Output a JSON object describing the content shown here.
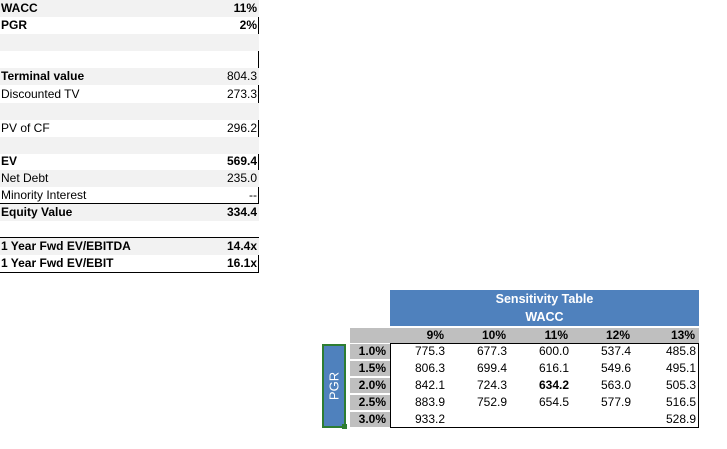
{
  "summary": {
    "wacc": {
      "label": "WACC",
      "value": "11%"
    },
    "pgr": {
      "label": "PGR",
      "value": "2%"
    },
    "terminal_value": {
      "label": "Terminal value",
      "value": "804.3"
    },
    "discounted_tv": {
      "label": "Discounted TV",
      "value": "273.3"
    },
    "pv_of_cf": {
      "label": "PV of CF",
      "value": "296.2"
    },
    "ev": {
      "label": "EV",
      "value": "569.4"
    },
    "net_debt": {
      "label": "Net Debt",
      "value": "235.0"
    },
    "minority_interest": {
      "label": "Minority Interest",
      "value": "--"
    },
    "equity_value": {
      "label": "Equity Value",
      "value": "334.4"
    }
  },
  "multiples": {
    "ev_ebitda": {
      "label": "1 Year Fwd EV/EBITDA",
      "value": "14.4x"
    },
    "ev_ebit": {
      "label": "1 Year Fwd EV/EBIT",
      "value": "16.1x"
    }
  },
  "sensitivity": {
    "title": "Sensitivity Table",
    "subtitle": "WACC",
    "row_axis_label": "PGR",
    "columns": [
      "9%",
      "10%",
      "11%",
      "12%",
      "13%"
    ],
    "rows": [
      "1.0%",
      "1.5%",
      "2.0%",
      "2.5%",
      "3.0%"
    ],
    "cells": [
      [
        "775.3",
        "677.3",
        "600.0",
        "537.4",
        "485.8"
      ],
      [
        "806.3",
        "699.4",
        "616.1",
        "549.6",
        "495.1"
      ],
      [
        "842.1",
        "724.3",
        "634.2",
        "563.0",
        "505.3"
      ],
      [
        "883.9",
        "752.9",
        "654.5",
        "577.9",
        "516.5"
      ],
      [
        "933.2",
        "",
        "",
        "",
        "528.9"
      ]
    ],
    "highlight": {
      "row": 2,
      "col": 2
    }
  }
}
